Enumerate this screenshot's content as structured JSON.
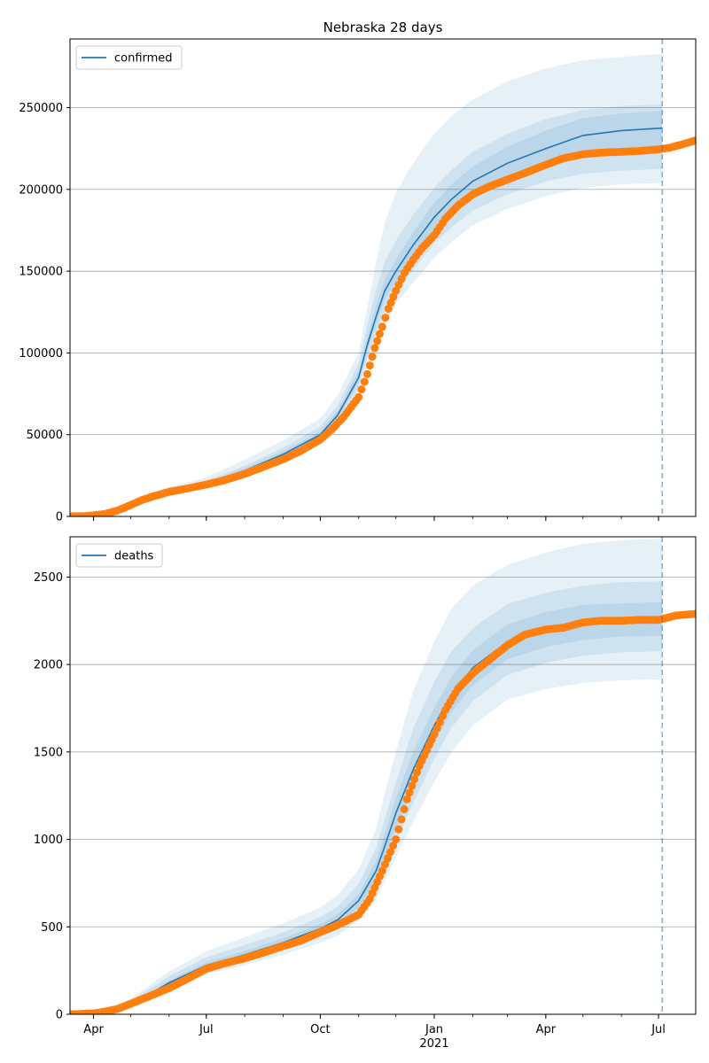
{
  "figure": {
    "title": "Nebraska 28 days",
    "year_label": "2021"
  },
  "colors": {
    "band": "#1f77b4",
    "model_line": "#1f77b4",
    "observed": "#ff7f0e",
    "grid": "#b0b0b0",
    "forecast_marker": "#1f77b4"
  },
  "x_axis": {
    "start": "2020-03-13",
    "end": "2021-07-31",
    "tick_labels": [
      {
        "date": "2020-04-01",
        "label": "Apr"
      },
      {
        "date": "2020-07-01",
        "label": "Jul"
      },
      {
        "date": "2020-10-01",
        "label": "Oct"
      },
      {
        "date": "2021-01-01",
        "label": "Jan"
      },
      {
        "date": "2021-04-01",
        "label": "Apr"
      },
      {
        "date": "2021-07-01",
        "label": "Jul"
      }
    ],
    "forecast_start": "2021-07-04"
  },
  "chart_data": [
    {
      "type": "line",
      "legend": "confirmed",
      "legend_position": "top-left",
      "grid": "horizontal",
      "ylim": [
        0,
        292000
      ],
      "yticks": [
        0,
        50000,
        100000,
        150000,
        200000,
        250000
      ],
      "ytick_labels": [
        "0",
        "50000",
        "100000",
        "150000",
        "200000",
        "250000"
      ],
      "model": {
        "dates": [
          "2020-03-13",
          "2020-04-01",
          "2020-04-15",
          "2020-05-01",
          "2020-05-15",
          "2020-06-01",
          "2020-07-01",
          "2020-08-01",
          "2020-09-01",
          "2020-10-01",
          "2020-10-15",
          "2020-11-01",
          "2020-11-08",
          "2020-11-15",
          "2020-11-22",
          "2020-12-01",
          "2020-12-15",
          "2021-01-01",
          "2021-01-15",
          "2021-02-01",
          "2021-03-01",
          "2021-04-01",
          "2021-05-01",
          "2021-06-01",
          "2021-07-04"
        ],
        "median": [
          0,
          800,
          2500,
          7000,
          11000,
          15000,
          20000,
          28000,
          38000,
          50000,
          62000,
          85000,
          105000,
          122000,
          138000,
          150000,
          166000,
          183000,
          194000,
          205000,
          216000,
          225000,
          233000,
          236000,
          237500
        ],
        "bands": [
          {
            "lower": [
              0,
              500,
              1800,
              5500,
              9000,
              12500,
              17500,
              24500,
              33500,
              44000,
              54000,
              73000,
              90000,
              106000,
              118000,
              130000,
              143000,
              158000,
              168000,
              178000,
              188000,
              196000,
              201000,
              203000,
              204000
            ],
            "upper": [
              0,
              1100,
              3400,
              9000,
              13500,
              18000,
              24000,
              34500,
              46500,
              60000,
              74000,
              100000,
              128000,
              155000,
              180000,
              198000,
              216000,
              234000,
              245000,
              255000,
              266000,
              274000,
              279000,
              281000,
              283000
            ]
          },
          {
            "lower": [
              0,
              600,
              2000,
              6000,
              9800,
              13500,
              18500,
              26000,
              35500,
              47000,
              57500,
              78500,
              97000,
              112000,
              126000,
              137000,
              151000,
              167000,
              177000,
              187000,
              197000,
              205000,
              209500,
              211500,
              212500
            ],
            "upper": [
              0,
              1000,
              3000,
              8200,
              12500,
              16800,
              22000,
              31000,
              42000,
              55000,
              68000,
              93500,
              117000,
              138500,
              156000,
              168500,
              184500,
              201000,
              212000,
              223000,
              234000,
              243000,
              248500,
              251000,
              252000
            ]
          },
          {
            "lower": [
              0,
              700,
              2200,
              6500,
              10400,
              14200,
              19200,
              27000,
              36800,
              48500,
              59800,
              82000,
              101500,
              117500,
              132500,
              143500,
              158000,
              174500,
              185000,
              196000,
              206000,
              214500,
              221000,
              223500,
              224500
            ],
            "upper": [
              0,
              900,
              2800,
              7600,
              11700,
              15900,
              21000,
              29500,
              40000,
              52000,
              64800,
              89000,
              110000,
              128500,
              145000,
              157000,
              174000,
              192000,
              203000,
              214000,
              226000,
              236000,
              243500,
              246500,
              248000
            ]
          }
        ]
      },
      "observed": {
        "dates": [
          "2020-03-13",
          "2020-03-25",
          "2020-04-01",
          "2020-04-10",
          "2020-04-20",
          "2020-05-01",
          "2020-05-10",
          "2020-05-20",
          "2020-06-01",
          "2020-06-15",
          "2020-07-01",
          "2020-07-15",
          "2020-08-01",
          "2020-08-15",
          "2020-09-01",
          "2020-09-15",
          "2020-10-01",
          "2020-10-10",
          "2020-10-20",
          "2020-11-01",
          "2020-11-08",
          "2020-11-14",
          "2020-11-20",
          "2020-11-25",
          "2020-12-01",
          "2020-12-08",
          "2020-12-15",
          "2020-12-22",
          "2021-01-01",
          "2021-01-10",
          "2021-01-20",
          "2021-02-01",
          "2021-02-15",
          "2021-03-01",
          "2021-03-15",
          "2021-04-01",
          "2021-04-15",
          "2021-05-01",
          "2021-05-15",
          "2021-06-01",
          "2021-06-15",
          "2021-07-01",
          "2021-07-10",
          "2021-07-20",
          "2021-07-31"
        ],
        "values": [
          0,
          200,
          700,
          1500,
          3500,
          7000,
          10000,
          12500,
          15000,
          17000,
          19500,
          22000,
          26000,
          30000,
          35000,
          40000,
          47000,
          53000,
          61000,
          73000,
          87000,
          103000,
          116000,
          127000,
          138000,
          149000,
          157000,
          164000,
          172000,
          182000,
          190000,
          197000,
          202000,
          206000,
          210000,
          215000,
          219000,
          221500,
          222500,
          223000,
          223500,
          224500,
          225500,
          227500,
          230000
        ]
      }
    },
    {
      "type": "line",
      "legend": "deaths",
      "legend_position": "top-left",
      "grid": "horizontal",
      "ylim": [
        0,
        2730
      ],
      "yticks": [
        0,
        500,
        1000,
        1500,
        2000,
        2500
      ],
      "ytick_labels": [
        "0",
        "500",
        "1000",
        "1500",
        "2000",
        "2500"
      ],
      "model": {
        "dates": [
          "2020-03-13",
          "2020-04-01",
          "2020-04-15",
          "2020-05-01",
          "2020-05-15",
          "2020-06-01",
          "2020-07-01",
          "2020-08-01",
          "2020-09-01",
          "2020-10-01",
          "2020-10-15",
          "2020-11-01",
          "2020-11-15",
          "2020-11-22",
          "2020-12-01",
          "2020-12-15",
          "2021-01-01",
          "2021-01-15",
          "2021-02-01",
          "2021-03-01",
          "2021-04-01",
          "2021-05-01",
          "2021-06-01",
          "2021-07-04"
        ],
        "median": [
          0,
          5,
          20,
          60,
          110,
          180,
          280,
          340,
          410,
          490,
          540,
          650,
          820,
          960,
          1150,
          1400,
          1650,
          1830,
          1980,
          2130,
          2200,
          2240,
          2255,
          2260
        ],
        "bands": [
          {
            "lower": [
              0,
              2,
              12,
              40,
              80,
              140,
              230,
              280,
              340,
              410,
              450,
              540,
              650,
              760,
              900,
              1100,
              1330,
              1500,
              1650,
              1800,
              1860,
              1895,
              1910,
              1915
            ],
            "upper": [
              0,
              9,
              32,
              90,
              160,
              245,
              360,
              440,
              520,
              610,
              680,
              830,
              1060,
              1260,
              1500,
              1850,
              2130,
              2320,
              2450,
              2570,
              2640,
              2690,
              2710,
              2720
            ]
          },
          {
            "lower": [
              0,
              3,
              15,
              48,
              92,
              156,
              248,
              302,
              366,
              440,
              484,
              580,
              712,
              830,
              990,
              1210,
              1460,
              1640,
              1790,
              1940,
              2010,
              2050,
              2070,
              2075
            ],
            "upper": [
              0,
              8,
              27,
              78,
              140,
              218,
              325,
              396,
              468,
              556,
              616,
              746,
              946,
              1116,
              1326,
              1636,
              1900,
              2076,
              2206,
              2346,
              2410,
              2450,
              2470,
              2475
            ]
          },
          {
            "lower": [
              0,
              4,
              17,
              54,
              100,
              166,
              262,
              318,
              386,
              462,
              508,
              612,
              762,
              890,
              1064,
              1300,
              1550,
              1730,
              1880,
              2030,
              2100,
              2140,
              2160,
              2165
            ],
            "upper": [
              0,
              6,
              23,
              66,
              120,
              194,
              298,
              362,
              434,
              518,
              572,
              688,
              878,
              1030,
              1236,
              1500,
              1750,
              1930,
              2080,
              2230,
              2300,
              2340,
              2350,
              2355
            ]
          }
        ]
      },
      "observed": {
        "dates": [
          "2020-03-13",
          "2020-04-01",
          "2020-04-10",
          "2020-04-20",
          "2020-05-01",
          "2020-05-15",
          "2020-06-01",
          "2020-06-15",
          "2020-07-01",
          "2020-07-15",
          "2020-08-01",
          "2020-08-15",
          "2020-09-01",
          "2020-09-15",
          "2020-10-01",
          "2020-10-15",
          "2020-11-01",
          "2020-11-10",
          "2020-11-20",
          "2020-12-01",
          "2020-12-10",
          "2020-12-20",
          "2021-01-01",
          "2021-01-10",
          "2021-01-20",
          "2021-02-01",
          "2021-02-15",
          "2021-03-01",
          "2021-03-15",
          "2021-04-01",
          "2021-04-15",
          "2021-05-01",
          "2021-05-15",
          "2021-06-01",
          "2021-06-15",
          "2021-07-01",
          "2021-07-15",
          "2021-07-31"
        ],
        "values": [
          0,
          5,
          15,
          30,
          60,
          100,
          150,
          200,
          260,
          290,
          320,
          350,
          390,
          420,
          470,
          510,
          570,
          660,
          820,
          1000,
          1230,
          1420,
          1600,
          1740,
          1860,
          1950,
          2030,
          2110,
          2170,
          2200,
          2210,
          2240,
          2250,
          2250,
          2255,
          2255,
          2280,
          2290
        ]
      }
    }
  ]
}
